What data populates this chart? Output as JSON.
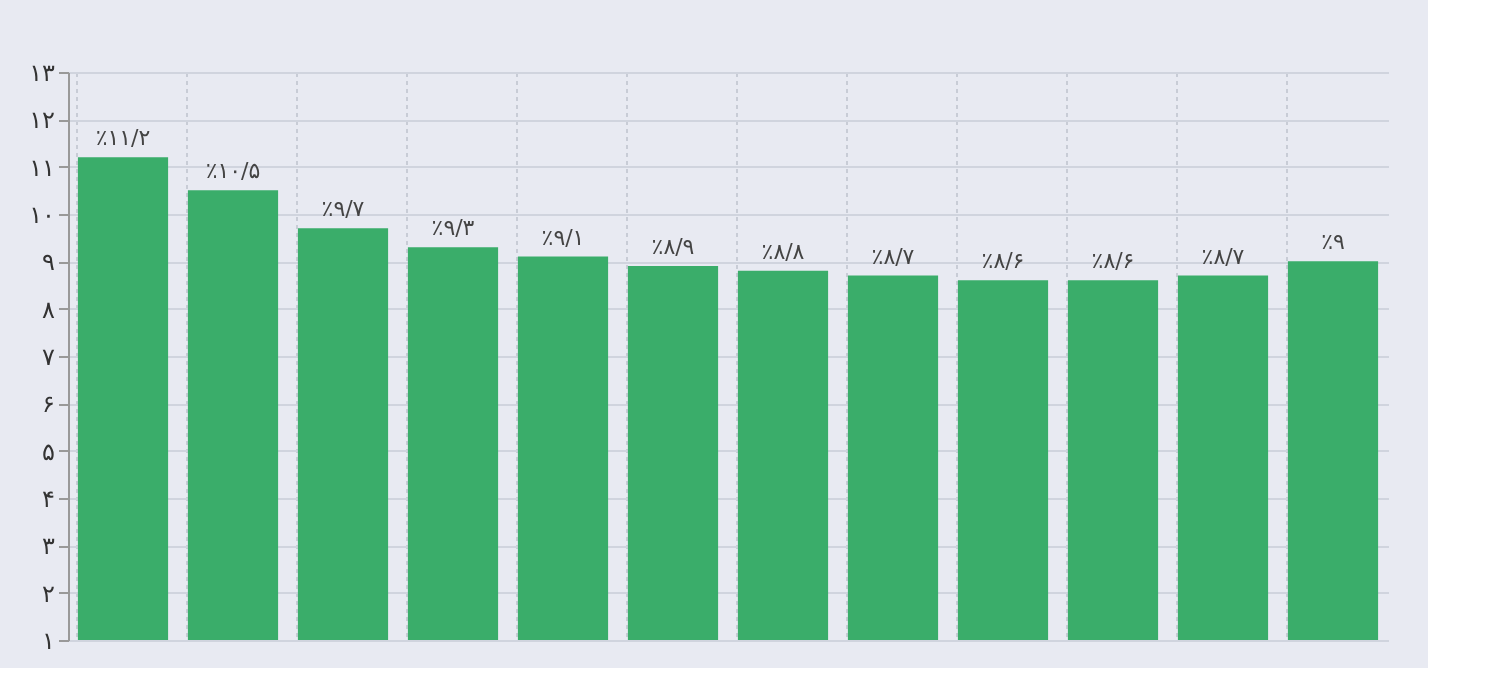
{
  "chart_data": {
    "type": "bar",
    "categories": [
      null,
      null,
      null,
      null,
      null,
      null,
      null,
      null,
      null,
      null,
      null,
      null
    ],
    "values": [
      11.2,
      10.5,
      9.7,
      9.3,
      9.1,
      8.9,
      8.8,
      8.7,
      8.6,
      8.6,
      8.7,
      9
    ],
    "value_labels": [
      "٪۱۱/۲",
      "٪۱۰/۵",
      "٪۹/۷",
      "٪۹/۳",
      "٪۹/۱",
      "٪۸/۹",
      "٪۸/۸",
      "٪۸/۷",
      "٪۸/۶",
      "٪۸/۶",
      "٪۸/۷",
      "٪۹"
    ],
    "color": "#3aad6a",
    "ylim": [
      1,
      13
    ],
    "yticks": [
      {
        "value": 1,
        "label": "۱"
      },
      {
        "value": 2,
        "label": "۲"
      },
      {
        "value": 3,
        "label": "۳"
      },
      {
        "value": 4,
        "label": "۴"
      },
      {
        "value": 5,
        "label": "۵"
      },
      {
        "value": 6,
        "label": "۶"
      },
      {
        "value": 7,
        "label": "۷"
      },
      {
        "value": 8,
        "label": "۸"
      },
      {
        "value": 9,
        "label": "۹"
      },
      {
        "value": 10,
        "label": "۱۰"
      },
      {
        "value": 11,
        "label": "۱۱"
      },
      {
        "value": 12,
        "label": "۱۲"
      },
      {
        "value": 13,
        "label": "۱۳"
      }
    ],
    "grid": true
  }
}
